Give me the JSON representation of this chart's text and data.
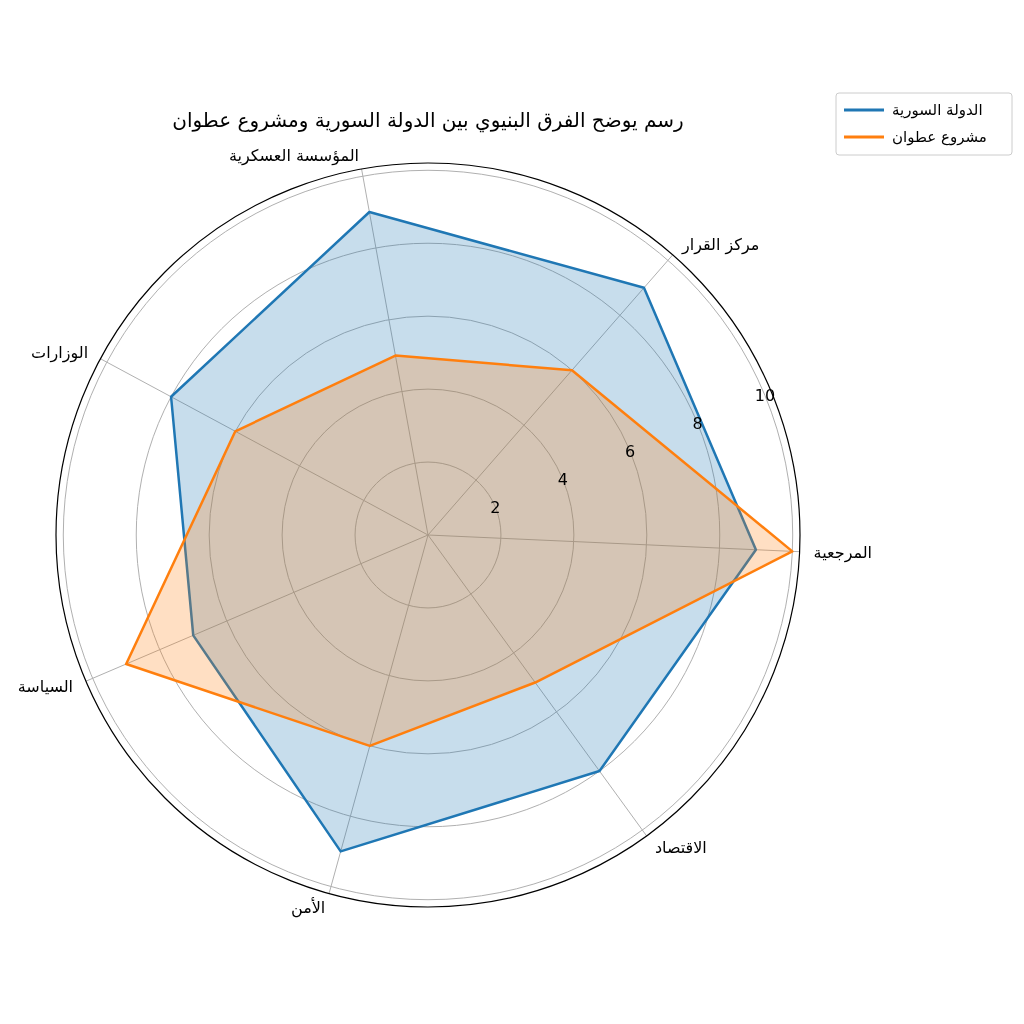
{
  "chart_data": {
    "type": "radar",
    "title": "رسم يوضح الفرق البنيوي بين الدولة السورية ومشروع عطوان",
    "categories": [
      "المؤسسة العسكرية",
      "مركز القرار",
      "المرجعية",
      "الاقتصاد",
      "الأمن",
      "السياسة",
      "الوزارات"
    ],
    "series": [
      {
        "name": "الدولة السورية",
        "color": "#1f77b4",
        "values": [
          9,
          9,
          9,
          8,
          9,
          7,
          8
        ]
      },
      {
        "name": "مشروع عطوان",
        "color": "#ff7f0e",
        "values": [
          5,
          6,
          10,
          5,
          6,
          9,
          6
        ]
      }
    ],
    "ylim": [
      0,
      10.2
    ],
    "yticks": [
      2,
      4,
      6,
      8,
      10
    ],
    "grid": true,
    "legend": "top right",
    "marker": "none",
    "line_style": "solid"
  }
}
